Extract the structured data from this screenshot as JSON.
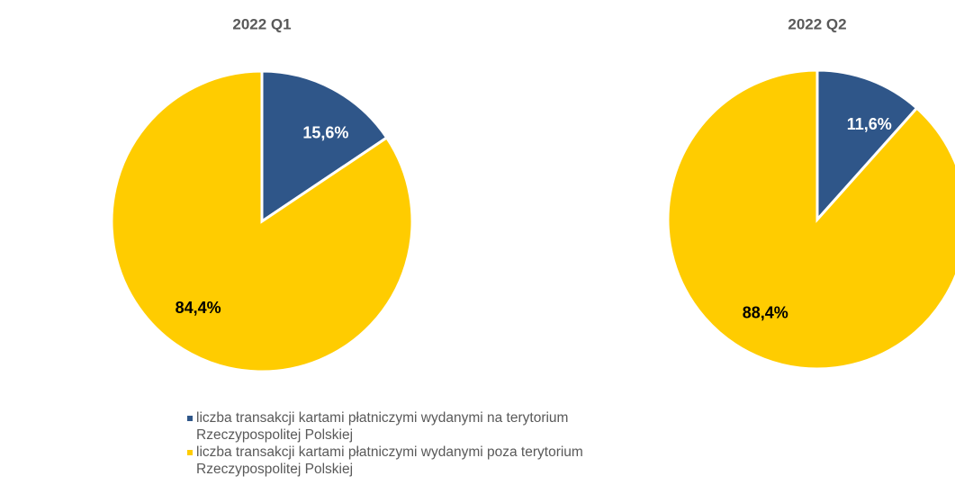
{
  "chart_data": [
    {
      "type": "pie",
      "title": "2022 Q1",
      "categories": [
        "liczba transakcji kartami płatniczymi wydanymi na terytorium Rzeczypospolitej Polskiej",
        "liczba transakcji kartami płatniczymi wydanymi poza terytorium Rzeczypospolitej Polskiej"
      ],
      "values": [
        15.6,
        84.4
      ],
      "value_labels": [
        "15,6%",
        "84,4%"
      ],
      "colors": [
        "#2f5689",
        "#ffcc00"
      ]
    },
    {
      "type": "pie",
      "title": "2022 Q2",
      "values": [
        11.6,
        88.4
      ],
      "value_labels": [
        "11,6%",
        "88,4%"
      ],
      "colors": [
        "#2f5689",
        "#ffcc00"
      ]
    }
  ]
}
